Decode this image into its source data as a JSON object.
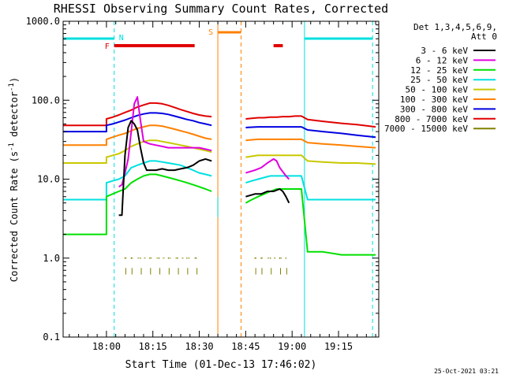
{
  "chart_data": {
    "type": "line",
    "title": "RHESSI Observing Summary Count Rates, Corrected",
    "xlabel": "Start Time (01-Dec-13 17:46:02)",
    "ylabel": "Corrected Count Rate (s⁻¹ detector⁻¹)",
    "ylabel_main": "Corrected Count Rate (s",
    "ylabel_sup1": "-1",
    "ylabel_mid": " detector",
    "ylabel_sup2": "-1",
    "ylabel_end": ")",
    "yscale": "log",
    "ylim": [
      0.1,
      1000
    ],
    "xlim_minutes": [
      0,
      102
    ],
    "x_unit": "minutes after 17:46:02",
    "ytick_labels": [
      "1000.0",
      "100.0",
      "10.0",
      "1.0",
      "0.1"
    ],
    "ytick_values": [
      1000,
      100,
      10,
      1,
      0.1
    ],
    "xtick_labels": [
      "18:00",
      "18:15",
      "18:30",
      "18:45",
      "19:00",
      "19:15"
    ],
    "xtick_minutes": [
      14,
      29,
      44,
      59,
      74,
      89
    ],
    "legend_header": [
      "Det 1,3,4,5,6,9,",
      "Att 0"
    ],
    "legend_position": "right",
    "flag_labels": {
      "saa": "S",
      "night": "N",
      "flare": "F"
    },
    "timestamp": "25-Oct-2021 03:21",
    "series": [
      {
        "name": "3 - 6 keV",
        "color": "#000000",
        "points": [
          [
            18,
            3.5
          ],
          [
            19,
            3.5
          ],
          [
            20,
            20
          ],
          [
            21,
            45
          ],
          [
            22,
            55
          ],
          [
            23,
            50
          ],
          [
            24,
            42
          ],
          [
            25,
            25
          ],
          [
            26,
            16
          ],
          [
            27,
            13
          ],
          [
            28,
            13
          ],
          [
            30,
            13
          ],
          [
            32,
            13.5
          ],
          [
            34,
            13
          ],
          [
            36,
            13
          ],
          [
            38,
            13.5
          ],
          [
            40,
            14
          ],
          [
            42,
            15
          ],
          [
            44,
            17
          ],
          [
            46,
            18
          ],
          [
            48,
            17
          ]
        ],
        "points2": [
          [
            59,
            6
          ],
          [
            62,
            6.5
          ],
          [
            64,
            6.5
          ],
          [
            66,
            7
          ],
          [
            68,
            7
          ],
          [
            70,
            7.5
          ],
          [
            71,
            7
          ],
          [
            72,
            6
          ],
          [
            73,
            5
          ]
        ]
      },
      {
        "name": "6 - 12 keV",
        "color": "#e000e0",
        "points": [
          [
            18,
            8
          ],
          [
            19,
            8.5
          ],
          [
            20,
            12
          ],
          [
            21,
            18
          ],
          [
            22,
            40
          ],
          [
            23,
            90
          ],
          [
            24,
            110
          ],
          [
            25,
            55
          ],
          [
            26,
            30
          ],
          [
            28,
            28
          ],
          [
            30,
            27
          ],
          [
            32,
            26
          ],
          [
            34,
            25
          ],
          [
            36,
            25
          ],
          [
            38,
            25
          ],
          [
            40,
            25
          ],
          [
            42,
            25
          ],
          [
            44,
            25
          ],
          [
            46,
            24
          ],
          [
            48,
            23
          ]
        ],
        "points2": [
          [
            59,
            12
          ],
          [
            62,
            13
          ],
          [
            64,
            14
          ],
          [
            66,
            16
          ],
          [
            68,
            18
          ],
          [
            69,
            17
          ],
          [
            70,
            14
          ],
          [
            72,
            11
          ],
          [
            73,
            10
          ]
        ]
      },
      {
        "name": "12 - 25 keV",
        "color": "#00e000",
        "points": [
          [
            0,
            2
          ],
          [
            14,
            2
          ],
          [
            14,
            6
          ],
          [
            16,
            6.5
          ],
          [
            18,
            7
          ],
          [
            20,
            7.5
          ],
          [
            22,
            9
          ],
          [
            24,
            10
          ],
          [
            26,
            11
          ],
          [
            28,
            11.5
          ],
          [
            30,
            11.5
          ],
          [
            32,
            11
          ],
          [
            34,
            10.5
          ],
          [
            36,
            10
          ],
          [
            38,
            9.5
          ],
          [
            40,
            9
          ],
          [
            42,
            8.5
          ],
          [
            44,
            8
          ],
          [
            46,
            7.5
          ],
          [
            48,
            7
          ]
        ],
        "points2": [
          [
            59,
            5
          ],
          [
            61,
            5.5
          ],
          [
            63,
            6
          ],
          [
            65,
            6.5
          ],
          [
            67,
            7
          ],
          [
            69,
            7.5
          ],
          [
            71,
            7.5
          ],
          [
            73,
            7.5
          ],
          [
            75,
            7.5
          ],
          [
            77,
            7.5
          ],
          [
            79,
            1.2
          ],
          [
            84,
            1.2
          ],
          [
            90,
            1.1
          ],
          [
            95,
            1.1
          ],
          [
            101,
            1.1
          ]
        ]
      },
      {
        "name": "25 - 50 keV",
        "color": "#00e0e0",
        "points": [
          [
            0,
            5.5
          ],
          [
            14,
            5.5
          ],
          [
            14,
            9
          ],
          [
            16,
            9.5
          ],
          [
            18,
            10
          ],
          [
            20,
            11
          ],
          [
            22,
            14
          ],
          [
            24,
            15
          ],
          [
            26,
            16
          ],
          [
            28,
            17
          ],
          [
            30,
            17
          ],
          [
            32,
            16.5
          ],
          [
            34,
            16
          ],
          [
            36,
            15.5
          ],
          [
            38,
            15
          ],
          [
            40,
            14
          ],
          [
            42,
            13
          ],
          [
            44,
            12
          ],
          [
            46,
            11.5
          ],
          [
            48,
            11
          ]
        ],
        "points2": [
          [
            59,
            9
          ],
          [
            61,
            9.5
          ],
          [
            63,
            10
          ],
          [
            65,
            10.5
          ],
          [
            67,
            11
          ],
          [
            69,
            11
          ],
          [
            71,
            11
          ],
          [
            73,
            11
          ],
          [
            75,
            11
          ],
          [
            77,
            11
          ],
          [
            79,
            5.5
          ],
          [
            84,
            5.5
          ],
          [
            90,
            5.5
          ],
          [
            95,
            5.5
          ],
          [
            101,
            5.5
          ]
        ]
      },
      {
        "name": "50 - 100 keV",
        "color": "#c8c800",
        "points": [
          [
            0,
            16
          ],
          [
            14,
            16
          ],
          [
            14,
            19
          ],
          [
            16,
            20
          ],
          [
            18,
            21
          ],
          [
            20,
            23
          ],
          [
            22,
            26
          ],
          [
            24,
            28
          ],
          [
            26,
            30
          ],
          [
            28,
            31
          ],
          [
            30,
            31
          ],
          [
            32,
            30
          ],
          [
            34,
            29
          ],
          [
            36,
            28
          ],
          [
            38,
            27
          ],
          [
            40,
            26
          ],
          [
            42,
            25
          ],
          [
            44,
            24
          ],
          [
            46,
            23
          ],
          [
            48,
            22
          ]
        ],
        "points2": [
          [
            59,
            19
          ],
          [
            61,
            19.5
          ],
          [
            63,
            20
          ],
          [
            65,
            20
          ],
          [
            67,
            20
          ],
          [
            69,
            20
          ],
          [
            71,
            20
          ],
          [
            73,
            20
          ],
          [
            75,
            20
          ],
          [
            77,
            20
          ],
          [
            79,
            17
          ],
          [
            84,
            16.5
          ],
          [
            90,
            16
          ],
          [
            95,
            16
          ],
          [
            101,
            15.5
          ]
        ]
      },
      {
        "name": "100 - 300 keV",
        "color": "#ff8000",
        "points": [
          [
            0,
            27
          ],
          [
            14,
            27
          ],
          [
            14,
            32
          ],
          [
            16,
            34
          ],
          [
            18,
            36
          ],
          [
            20,
            38
          ],
          [
            22,
            41
          ],
          [
            24,
            44
          ],
          [
            26,
            46
          ],
          [
            28,
            48
          ],
          [
            30,
            48
          ],
          [
            32,
            47
          ],
          [
            34,
            45
          ],
          [
            36,
            43
          ],
          [
            38,
            41
          ],
          [
            40,
            39
          ],
          [
            42,
            37
          ],
          [
            44,
            35
          ],
          [
            46,
            33
          ],
          [
            48,
            32
          ]
        ],
        "points2": [
          [
            59,
            31
          ],
          [
            61,
            31.5
          ],
          [
            63,
            32
          ],
          [
            65,
            32
          ],
          [
            67,
            32
          ],
          [
            69,
            32
          ],
          [
            71,
            32
          ],
          [
            73,
            32
          ],
          [
            75,
            32
          ],
          [
            77,
            32
          ],
          [
            79,
            29
          ],
          [
            84,
            28
          ],
          [
            90,
            27
          ],
          [
            95,
            26
          ],
          [
            101,
            25
          ]
        ]
      },
      {
        "name": "300 - 800 keV",
        "color": "#0000e0",
        "points": [
          [
            0,
            40
          ],
          [
            14,
            40
          ],
          [
            14,
            48
          ],
          [
            16,
            50
          ],
          [
            18,
            53
          ],
          [
            20,
            56
          ],
          [
            22,
            60
          ],
          [
            24,
            64
          ],
          [
            26,
            67
          ],
          [
            28,
            69
          ],
          [
            30,
            69
          ],
          [
            32,
            68
          ],
          [
            34,
            66
          ],
          [
            36,
            63
          ],
          [
            38,
            60
          ],
          [
            40,
            57
          ],
          [
            42,
            55
          ],
          [
            44,
            52
          ],
          [
            46,
            50
          ],
          [
            48,
            48
          ]
        ],
        "points2": [
          [
            59,
            45
          ],
          [
            61,
            45.5
          ],
          [
            63,
            46
          ],
          [
            65,
            46
          ],
          [
            67,
            46
          ],
          [
            69,
            46
          ],
          [
            71,
            46
          ],
          [
            73,
            46
          ],
          [
            75,
            46
          ],
          [
            77,
            46
          ],
          [
            79,
            42
          ],
          [
            84,
            40
          ],
          [
            90,
            38
          ],
          [
            95,
            36
          ],
          [
            101,
            34
          ]
        ]
      },
      {
        "name": "800 - 7000 keV",
        "color": "#e00000",
        "points": [
          [
            0,
            48
          ],
          [
            14,
            48
          ],
          [
            14,
            58
          ],
          [
            16,
            61
          ],
          [
            18,
            65
          ],
          [
            20,
            70
          ],
          [
            22,
            75
          ],
          [
            24,
            82
          ],
          [
            26,
            87
          ],
          [
            28,
            92
          ],
          [
            30,
            92
          ],
          [
            32,
            90
          ],
          [
            34,
            86
          ],
          [
            36,
            81
          ],
          [
            38,
            76
          ],
          [
            40,
            72
          ],
          [
            42,
            68
          ],
          [
            44,
            65
          ],
          [
            46,
            63
          ],
          [
            48,
            62
          ]
        ],
        "points2": [
          [
            59,
            58
          ],
          [
            61,
            59
          ],
          [
            63,
            60
          ],
          [
            65,
            60
          ],
          [
            67,
            61
          ],
          [
            69,
            61
          ],
          [
            71,
            62
          ],
          [
            73,
            62
          ],
          [
            75,
            63
          ],
          [
            77,
            63
          ],
          [
            79,
            57
          ],
          [
            84,
            54
          ],
          [
            90,
            51
          ],
          [
            95,
            49
          ],
          [
            101,
            46
          ]
        ]
      },
      {
        "name": "7000 - 15000 keV",
        "color": "#808000",
        "points": [
          [
            20,
            1
          ],
          [
            22,
            1
          ],
          [
            25,
            1
          ],
          [
            28,
            1
          ],
          [
            31,
            1
          ],
          [
            34,
            1
          ],
          [
            37,
            1
          ],
          [
            40,
            1
          ],
          [
            43,
            1
          ]
        ],
        "points2": [
          [
            62,
            1
          ],
          [
            64,
            1
          ],
          [
            67,
            1
          ],
          [
            70,
            1
          ],
          [
            72,
            1
          ]
        ]
      }
    ],
    "flags": {
      "night_intervals_minutes": [
        [
          0,
          16.5
        ],
        [
          78,
          100
        ]
      ],
      "flare_intervals_minutes": [
        [
          16.5,
          42.5
        ],
        [
          68,
          71
        ]
      ],
      "saa_intervals_minutes": [
        [
          50,
          57.5
        ]
      ]
    }
  }
}
